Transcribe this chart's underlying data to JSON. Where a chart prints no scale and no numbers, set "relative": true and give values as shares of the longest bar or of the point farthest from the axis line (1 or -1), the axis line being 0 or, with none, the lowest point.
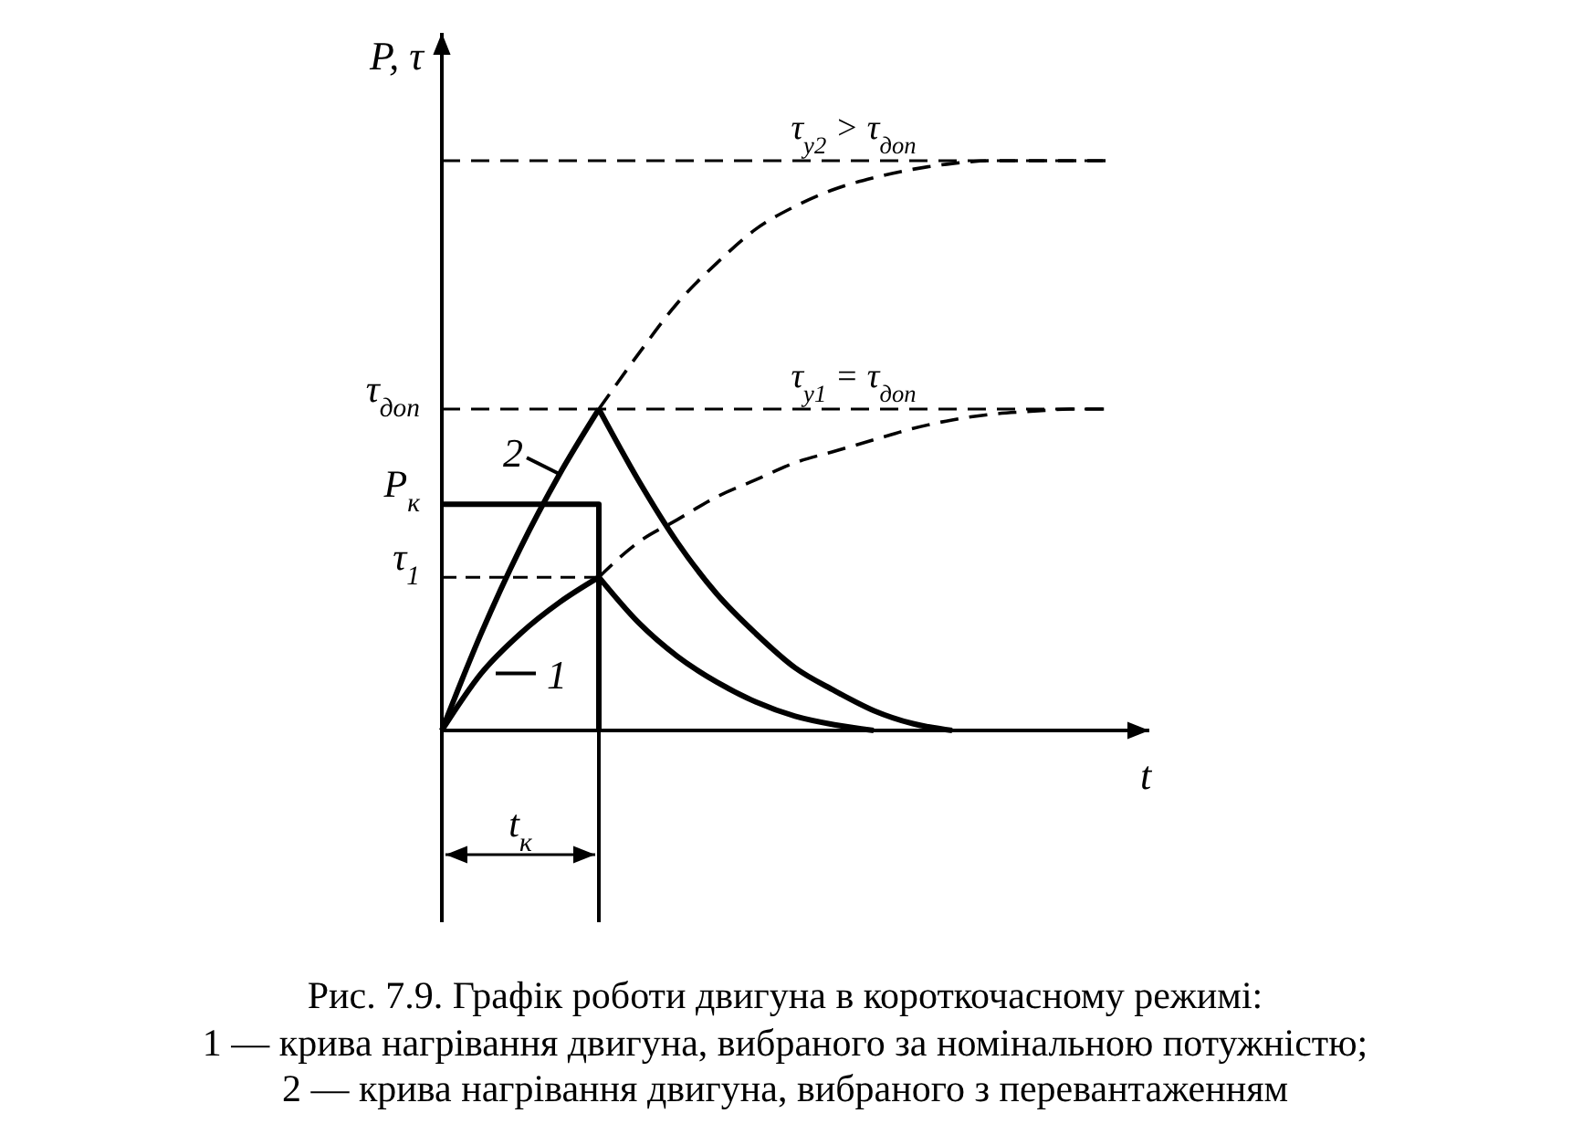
{
  "chart_data": {
    "type": "line",
    "relative": true,
    "title": "Рис. 7.9. Графік роботи двигуна в короткочасному режимі:",
    "xlabel": "t",
    "ylabel": "P, τ",
    "categories": [
      null,
      null,
      null,
      null,
      null,
      null,
      null,
      null,
      null,
      null,
      null,
      null,
      null,
      null,
      null,
      null,
      null,
      null
    ],
    "series": [
      {
        "name": "1",
        "color": "#000000",
        "line_style": "solid",
        "values": [
          0,
          0.1,
          0.17,
          0.225,
          0.269,
          null,
          null,
          null,
          null,
          null,
          null,
          null,
          null,
          null,
          null,
          null,
          null,
          null
        ]
      },
      {
        "color": "#000000",
        "line_style": "solid",
        "values": [
          null,
          null,
          null,
          null,
          0.269,
          0.19,
          0.13,
          0.085,
          0.05,
          0.025,
          0.01,
          0,
          null,
          null,
          null,
          null,
          null,
          null
        ]
      },
      {
        "color": "#000000",
        "line_style": "dashed",
        "values": [
          null,
          null,
          null,
          null,
          0.269,
          0.33,
          0.37,
          0.41,
          0.44,
          0.47,
          0.49,
          0.51,
          0.53,
          0.545,
          0.555,
          0.56,
          0.564,
          0.564
        ]
      },
      {
        "name": "2",
        "color": "#000000",
        "line_style": "solid",
        "values": [
          0,
          0.17,
          0.32,
          0.45,
          0.564,
          null,
          null,
          null,
          null,
          null,
          null,
          null,
          null,
          null,
          null,
          null,
          null,
          null
        ]
      },
      {
        "color": "#000000",
        "line_style": "solid",
        "values": [
          null,
          null,
          null,
          null,
          0.564,
          0.44,
          0.33,
          0.24,
          0.17,
          0.11,
          0.07,
          0.035,
          0.012,
          0,
          null,
          null,
          null,
          null
        ]
      },
      {
        "color": "#000000",
        "line_style": "dashed",
        "values": [
          null,
          null,
          null,
          null,
          0.564,
          0.66,
          0.75,
          0.82,
          0.88,
          0.92,
          0.95,
          0.97,
          0.985,
          0.995,
          1,
          1,
          1,
          1
        ]
      },
      {
        "type": "step",
        "color": "#000000",
        "line_style": "solid",
        "values": [
          0.397,
          0.397,
          0.397,
          0.397,
          0,
          null,
          null,
          null,
          null,
          null,
          null,
          null,
          null,
          null,
          null,
          null,
          null,
          null
        ]
      }
    ],
    "ref_lines": [
      {
        "axis": "y",
        "value": 1,
        "label": "τ$_{у2}$ > τ$_{доп}$",
        "line_style": "dashed",
        "color": "#000000"
      },
      {
        "axis": "y",
        "value": 0.564,
        "label": "τ$_{у1}$ = τ$_{доп}$",
        "line_style": "dashed",
        "color": "#000000"
      }
    ],
    "annotations": [
      "τ$_{доп}$",
      "P$_{к}$",
      "τ$_{1}$",
      "t$_{к}$",
      "1 — крива нагрівання двигуна, вибраного за номінальною потужністю;",
      "2 — крива нагрівання двигуна, вибраного з перевантаженням"
    ]
  }
}
